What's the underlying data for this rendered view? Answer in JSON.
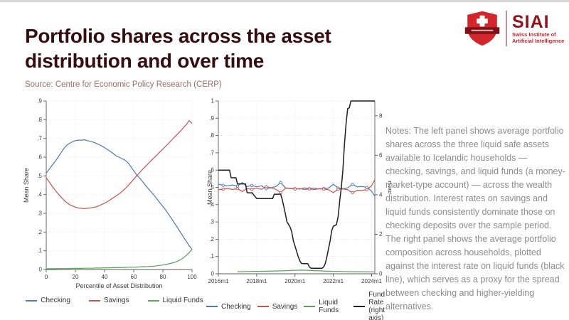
{
  "slide": {
    "title": "Portfolio shares across the asset distribution and over time",
    "source": "Source: Centre for Economic Policy Research (CERP)",
    "notes": "Notes: The left panel shows average portfolio shares across the three liquid safe assets available to Icelandic households — checking, savings, and liquid funds (a money-market-type account) — across the wealth distribution. Interest rates on savings and liquid funds consistently dominate those on checking deposits over the sample period. The right panel shows the average portfolio composition across households, plotted against the interest rate on liquid funds (black line), which serves as a proxy for the spread between checking and higher-yielding alternatives."
  },
  "logo": {
    "acronym": "SIAI",
    "org_line1": "Swiss Institute of",
    "org_line2": "Artificial Intelligence",
    "shield_color": "#d2262c",
    "banner_color": "#7c1116",
    "text_color": "#8e151b"
  },
  "colors": {
    "series": {
      "Checking": "#4f78b8",
      "Savings": "#cb5150",
      "Liquid Funds": "#57a257",
      "Fund Rate (right axis)": "#1f1f1f"
    },
    "title": "#330d11",
    "source_text": "#9c6d68",
    "notes_text": "#8c8c8c"
  },
  "chart_data": [
    {
      "type": "line",
      "title": "",
      "xlabel": "Percentile of Asset Distribution",
      "ylabel": "Mean Share",
      "xlim": [
        0,
        100
      ],
      "ylim": [
        0,
        0.9
      ],
      "x_ticks": [
        0,
        20,
        40,
        60,
        80,
        100
      ],
      "x_tick_labels": [
        "0",
        "20",
        "40",
        "60",
        "80",
        "100"
      ],
      "y_ticks": [
        0,
        0.1,
        0.2,
        0.3,
        0.4,
        0.5,
        0.6,
        0.7,
        0.8,
        0.9
      ],
      "y_tick_labels": [
        "0",
        ".1",
        ".2",
        ".3",
        ".4",
        ".5",
        ".6",
        ".7",
        ".8",
        ".9"
      ],
      "grid": true,
      "legend_position": "bottom",
      "legend": [
        "Checking",
        "Savings",
        "Liquid Funds"
      ],
      "x": [
        0,
        2,
        4,
        6,
        8,
        10,
        12,
        14,
        16,
        18,
        20,
        22,
        24,
        26,
        28,
        30,
        32,
        34,
        36,
        38,
        40,
        42,
        44,
        46,
        48,
        50,
        52,
        54,
        56,
        58,
        60,
        62,
        64,
        66,
        68,
        70,
        72,
        74,
        76,
        78,
        80,
        82,
        84,
        86,
        88,
        90,
        92,
        94,
        96,
        98,
        100
      ],
      "series": [
        {
          "name": "Checking",
          "axis": "left",
          "values": [
            0.515,
            0.535,
            0.556,
            0.576,
            0.598,
            0.622,
            0.645,
            0.663,
            0.674,
            0.682,
            0.688,
            0.691,
            0.69,
            0.693,
            0.689,
            0.685,
            0.681,
            0.675,
            0.668,
            0.66,
            0.651,
            0.641,
            0.63,
            0.619,
            0.607,
            0.6,
            0.592,
            0.584,
            0.571,
            0.55,
            0.528,
            0.505,
            0.489,
            0.47,
            0.451,
            0.432,
            0.414,
            0.396,
            0.376,
            0.356,
            0.337,
            0.317,
            0.294,
            0.271,
            0.247,
            0.224,
            0.199,
            0.175,
            0.151,
            0.127,
            0.108
          ]
        },
        {
          "name": "Savings",
          "axis": "left",
          "values": [
            0.49,
            0.468,
            0.446,
            0.425,
            0.406,
            0.388,
            0.372,
            0.358,
            0.347,
            0.339,
            0.333,
            0.329,
            0.327,
            0.325,
            0.327,
            0.329,
            0.331,
            0.334,
            0.34,
            0.347,
            0.354,
            0.363,
            0.373,
            0.383,
            0.393,
            0.404,
            0.417,
            0.431,
            0.447,
            0.464,
            0.482,
            0.5,
            0.517,
            0.534,
            0.55,
            0.566,
            0.582,
            0.597,
            0.612,
            0.628,
            0.643,
            0.659,
            0.675,
            0.691,
            0.707,
            0.723,
            0.739,
            0.756,
            0.774,
            0.795,
            0.78
          ]
        },
        {
          "name": "Liquid Funds",
          "axis": "left",
          "values": [
            0.004,
            0.004,
            0.004,
            0.004,
            0.005,
            0.005,
            0.005,
            0.005,
            0.005,
            0.006,
            0.006,
            0.006,
            0.006,
            0.007,
            0.007,
            0.007,
            0.007,
            0.008,
            0.008,
            0.008,
            0.009,
            0.009,
            0.009,
            0.01,
            0.01,
            0.01,
            0.011,
            0.011,
            0.012,
            0.012,
            0.013,
            0.013,
            0.014,
            0.015,
            0.015,
            0.016,
            0.017,
            0.018,
            0.02,
            0.022,
            0.024,
            0.027,
            0.03,
            0.034,
            0.038,
            0.044,
            0.052,
            0.062,
            0.075,
            0.09,
            0.108
          ]
        }
      ]
    },
    {
      "type": "line",
      "title": "",
      "xlabel": "",
      "ylabel": "Mean Share",
      "y2label": "Rate",
      "xlim": [
        0,
        98
      ],
      "ylim": [
        0,
        1
      ],
      "y2lim": [
        0,
        8.75
      ],
      "x_ticks": [
        0,
        24,
        48,
        72,
        96
      ],
      "x_tick_labels": [
        "2016m1",
        "2018m1",
        "2020m1",
        "2022m1",
        "2024m1"
      ],
      "y_ticks": [
        0,
        0.1,
        0.2,
        0.3,
        0.4,
        0.5,
        0.6,
        0.7,
        0.8,
        0.9,
        1
      ],
      "y_tick_labels": [
        "0",
        ".1",
        ".2",
        ".3",
        ".4",
        ".5",
        ".6",
        ".7",
        ".8",
        ".9",
        "1"
      ],
      "y2_ticks": [
        0,
        2,
        4,
        6,
        8
      ],
      "y2_tick_labels": [
        "0",
        "2",
        "4",
        "6",
        "8"
      ],
      "grid": true,
      "legend_position": "bottom",
      "legend": [
        "Checking",
        "Savings",
        "Liquid Funds",
        "Fund Rate\n(right axis)"
      ],
      "series": [
        {
          "name": "Checking",
          "axis": "left",
          "markers": true,
          "x": [
            0,
            3,
            6,
            9,
            12,
            15,
            18,
            21,
            24,
            27,
            30,
            33,
            36,
            39,
            42,
            45,
            48,
            51,
            54,
            57,
            60,
            63,
            66,
            69,
            72,
            75,
            78,
            81,
            84,
            87,
            90,
            93,
            96,
            98
          ],
          "values": [
            0.518,
            0.512,
            0.509,
            0.514,
            0.508,
            0.528,
            0.505,
            0.511,
            0.503,
            0.509,
            0.492,
            0.498,
            0.505,
            0.528,
            0.497,
            0.495,
            0.492,
            0.49,
            0.497,
            0.492,
            0.496,
            0.49,
            0.493,
            0.496,
            0.518,
            0.496,
            0.492,
            0.497,
            0.518,
            0.503,
            0.505,
            0.5,
            0.478,
            0.448
          ]
        },
        {
          "name": "Savings",
          "axis": "left",
          "markers": true,
          "x": [
            0,
            3,
            6,
            9,
            12,
            15,
            18,
            21,
            24,
            27,
            30,
            33,
            36,
            39,
            42,
            45,
            48,
            51,
            54,
            57,
            60,
            63,
            66,
            69,
            72,
            75,
            78,
            81,
            84,
            87,
            90,
            93,
            96,
            98
          ],
          "values": [
            0.486,
            0.49,
            0.492,
            0.488,
            0.493,
            0.476,
            0.494,
            0.489,
            0.495,
            0.489,
            0.504,
            0.497,
            0.489,
            0.47,
            0.495,
            0.494,
            0.49,
            0.493,
            0.488,
            0.491,
            0.487,
            0.492,
            0.49,
            0.486,
            0.47,
            0.489,
            0.491,
            0.486,
            0.469,
            0.483,
            0.482,
            0.487,
            0.51,
            0.545
          ]
        },
        {
          "name": "Liquid Funds",
          "axis": "left",
          "x": [
            12,
            18,
            24,
            30,
            36,
            42,
            48,
            52,
            56,
            60,
            66,
            72,
            78,
            84,
            90,
            96,
            98
          ],
          "values": [
            0.012,
            0.013,
            0.014,
            0.015,
            0.016,
            0.018,
            0.02,
            0.021,
            0.02,
            0.018,
            0.016,
            0.014,
            0.013,
            0.012,
            0.012,
            0.011,
            0.011
          ]
        },
        {
          "name": "Fund Rate (right axis)",
          "axis": "right",
          "x": [
            0,
            7,
            8,
            11,
            12,
            17,
            18,
            20,
            21,
            24,
            34,
            35,
            39,
            40,
            41,
            42,
            43,
            44,
            45,
            46,
            47,
            48,
            49,
            50,
            51,
            52,
            53,
            56,
            57,
            58,
            65,
            66,
            67,
            68,
            69,
            70,
            71,
            72,
            74,
            75,
            76,
            77,
            78,
            79,
            80,
            81,
            82,
            83,
            98
          ],
          "values": [
            5.25,
            5.25,
            4.86,
            4.86,
            4.55,
            4.55,
            4.11,
            4.09,
            4.11,
            3.81,
            3.81,
            4.03,
            4.03,
            3.76,
            3.41,
            3.02,
            2.63,
            2.49,
            2.36,
            2.1,
            1.66,
            1.4,
            1.14,
            0.88,
            0.66,
            0.53,
            0.51,
            0.51,
            0.35,
            0.28,
            0.28,
            0.35,
            0.53,
            0.88,
            1.27,
            1.66,
            2.19,
            2.41,
            2.49,
            2.89,
            3.68,
            4.38,
            5.25,
            6.56,
            7.61,
            8.36,
            8.4,
            8.75,
            8.75
          ]
        }
      ]
    }
  ]
}
